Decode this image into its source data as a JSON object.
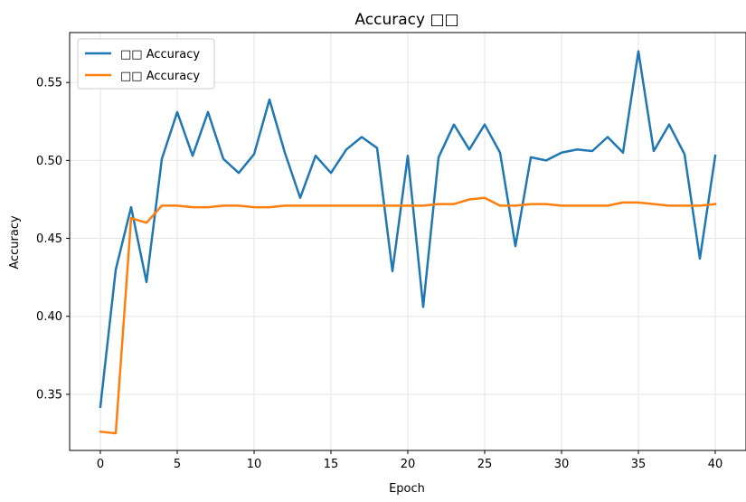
{
  "chart_data": {
    "type": "line",
    "title": "Accuracy □□",
    "xlabel": "Epoch",
    "ylabel": "Accuracy",
    "xlim": [
      -2,
      42
    ],
    "ylim": [
      0.314,
      0.582
    ],
    "xticks": [
      0,
      5,
      10,
      15,
      20,
      25,
      30,
      35,
      40
    ],
    "yticks": [
      0.35,
      0.4,
      0.45,
      0.5,
      0.55
    ],
    "ytick_labels": [
      "0.35",
      "0.40",
      "0.45",
      "0.50",
      "0.55"
    ],
    "grid": true,
    "legend_position": "top-left",
    "x": [
      0,
      1,
      2,
      3,
      4,
      5,
      6,
      7,
      8,
      9,
      10,
      11,
      12,
      13,
      14,
      15,
      16,
      17,
      18,
      19,
      20,
      21,
      22,
      23,
      24,
      25,
      26,
      27,
      28,
      29,
      30,
      31,
      32,
      33,
      34,
      35,
      36,
      37,
      38,
      39,
      40
    ],
    "series": [
      {
        "name": "□□ Accuracy",
        "color": "#1f77b4",
        "values": [
          0.342,
          0.43,
          0.47,
          0.422,
          0.501,
          0.531,
          0.503,
          0.531,
          0.501,
          0.492,
          0.504,
          0.539,
          0.505,
          0.476,
          0.503,
          0.492,
          0.507,
          0.515,
          0.508,
          0.429,
          0.503,
          0.406,
          0.502,
          0.523,
          0.507,
          0.523,
          0.505,
          0.445,
          0.502,
          0.5,
          0.505,
          0.507,
          0.506,
          0.515,
          0.505,
          0.57,
          0.506,
          0.523,
          0.504,
          0.437,
          0.503
        ]
      },
      {
        "name": "□□ Accuracy",
        "color": "#ff7f0e",
        "values": [
          0.326,
          0.325,
          0.463,
          0.46,
          0.471,
          0.471,
          0.47,
          0.47,
          0.471,
          0.471,
          0.47,
          0.47,
          0.471,
          0.471,
          0.471,
          0.471,
          0.471,
          0.471,
          0.471,
          0.471,
          0.471,
          0.471,
          0.472,
          0.472,
          0.475,
          0.476,
          0.471,
          0.471,
          0.472,
          0.472,
          0.471,
          0.471,
          0.471,
          0.471,
          0.473,
          0.473,
          0.472,
          0.471,
          0.471,
          0.471,
          0.472
        ]
      }
    ]
  }
}
